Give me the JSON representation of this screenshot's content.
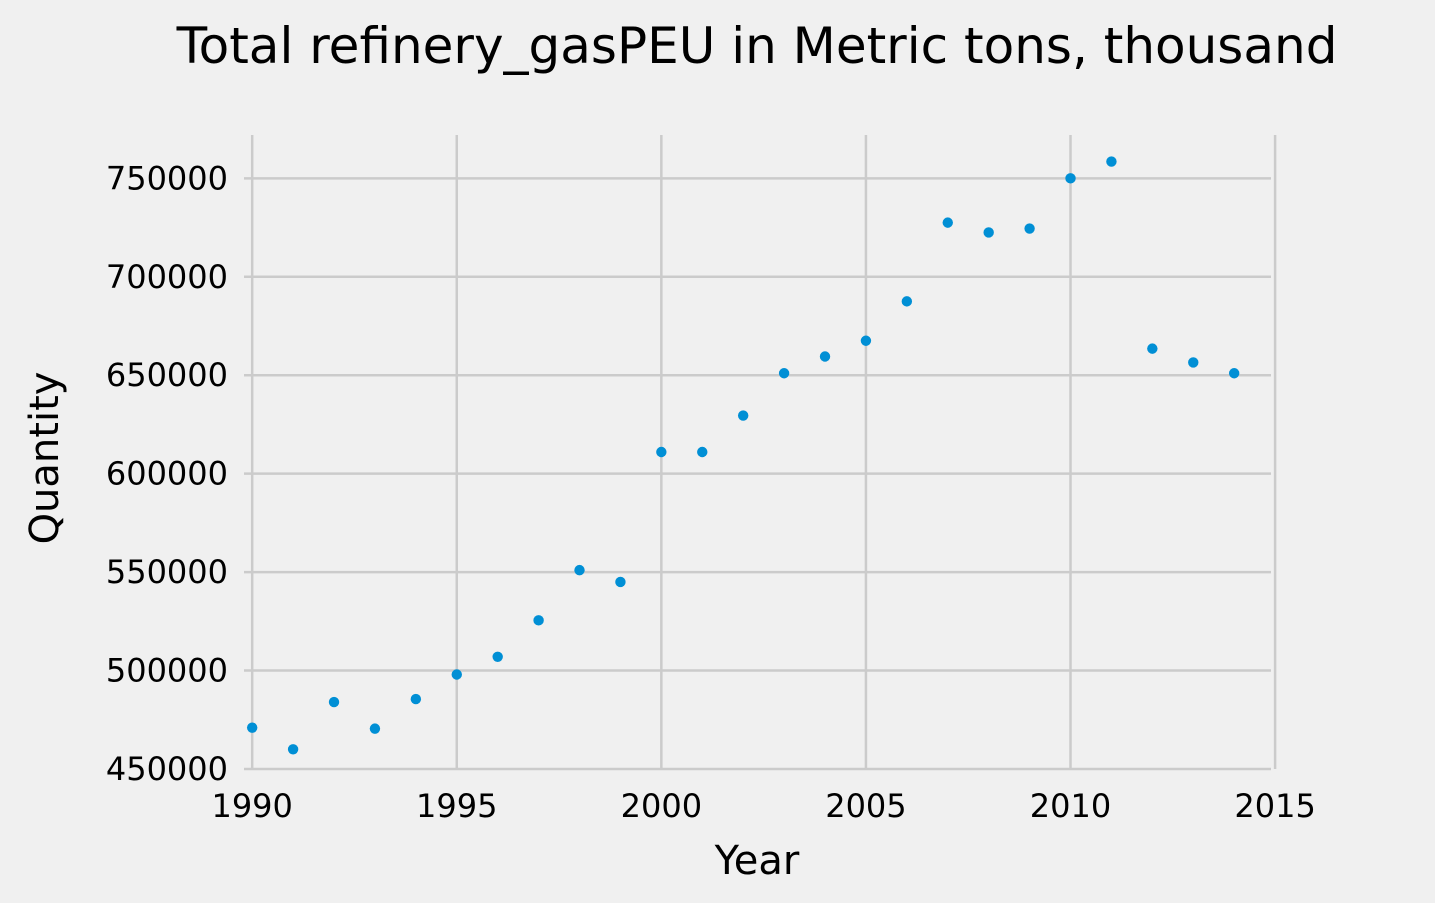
{
  "chart_data": {
    "type": "scatter",
    "title": "Total refinery_gasPEU in Metric tons,  thousand",
    "xlabel": "Year",
    "ylabel": "Quantity",
    "xlim": [
      1989.8,
      2014.9
    ],
    "ylim": [
      450000,
      772000
    ],
    "xticks": [
      1990,
      1995,
      2000,
      2005,
      2010,
      2015
    ],
    "yticks": [
      450000,
      500000,
      550000,
      600000,
      650000,
      700000,
      750000
    ],
    "grid": true,
    "legend": "none",
    "colors": {
      "marker": "#008fd5",
      "background": "#f0f0f0",
      "grid": "#cbcbcb"
    },
    "series": [
      {
        "x": [
          1990,
          1991,
          1992,
          1993,
          1994,
          1995,
          1996,
          1997,
          1998,
          1999,
          2000,
          2001,
          2002,
          2003,
          2004,
          2005,
          2006,
          2007,
          2008,
          2009,
          2010,
          2011,
          2012,
          2013,
          2014
        ],
        "y": [
          471000,
          460000,
          484000,
          470500,
          485500,
          498000,
          507000,
          525500,
          551000,
          545000,
          611000,
          611000,
          629500,
          651000,
          659500,
          667500,
          687500,
          727500,
          722500,
          724500,
          750000,
          758500,
          663500,
          656500,
          651000
        ]
      }
    ]
  }
}
